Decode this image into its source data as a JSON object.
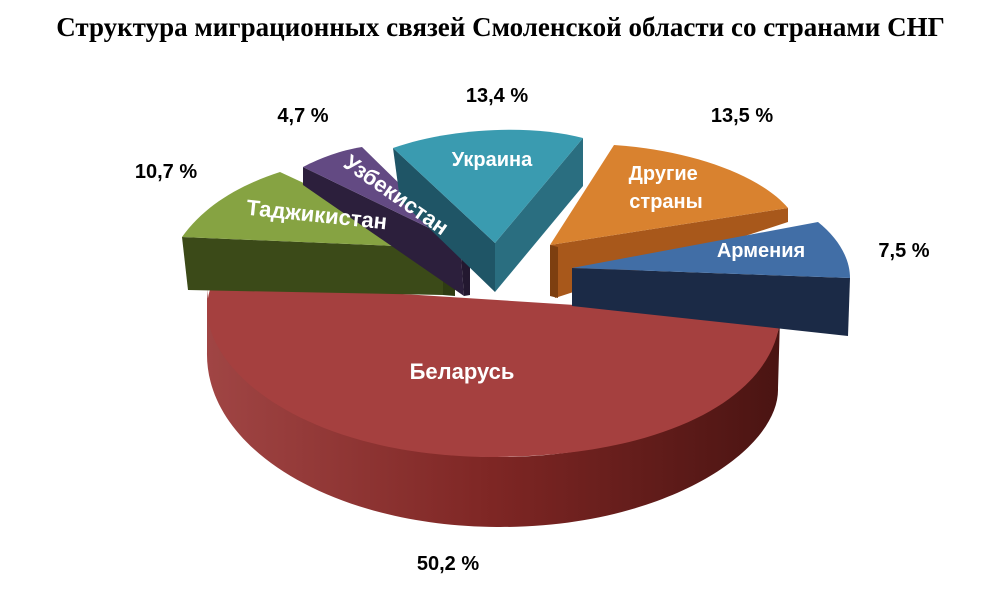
{
  "chart_data": {
    "type": "pie",
    "title": "Структура миграционных связей Смоленской области со странами СНГ",
    "slices": [
      {
        "name": "Беларусь",
        "label": "Беларусь",
        "value": 50.2,
        "value_label": "50,2 %",
        "color": "#a5403f"
      },
      {
        "name": "Таджикистан",
        "label": "Таджикистан",
        "value": 10.7,
        "value_label": "10,7 %",
        "color": "#86a342"
      },
      {
        "name": "Узбекистан",
        "label": "Узбекистан",
        "value": 4.7,
        "value_label": "4,7 %",
        "color": "#634a83"
      },
      {
        "name": "Украина",
        "label": "Украина",
        "value": 13.4,
        "value_label": "13,4 %",
        "color": "#3a9bb0"
      },
      {
        "name": "Другие страны",
        "label": [
          "Другие",
          "страны"
        ],
        "value": 13.5,
        "value_label": "13,5 %",
        "color": "#d9822f"
      },
      {
        "name": "Армения",
        "label": "Армения",
        "value": 7.5,
        "value_label": "7,5 %",
        "color": "#416ea6"
      }
    ]
  }
}
